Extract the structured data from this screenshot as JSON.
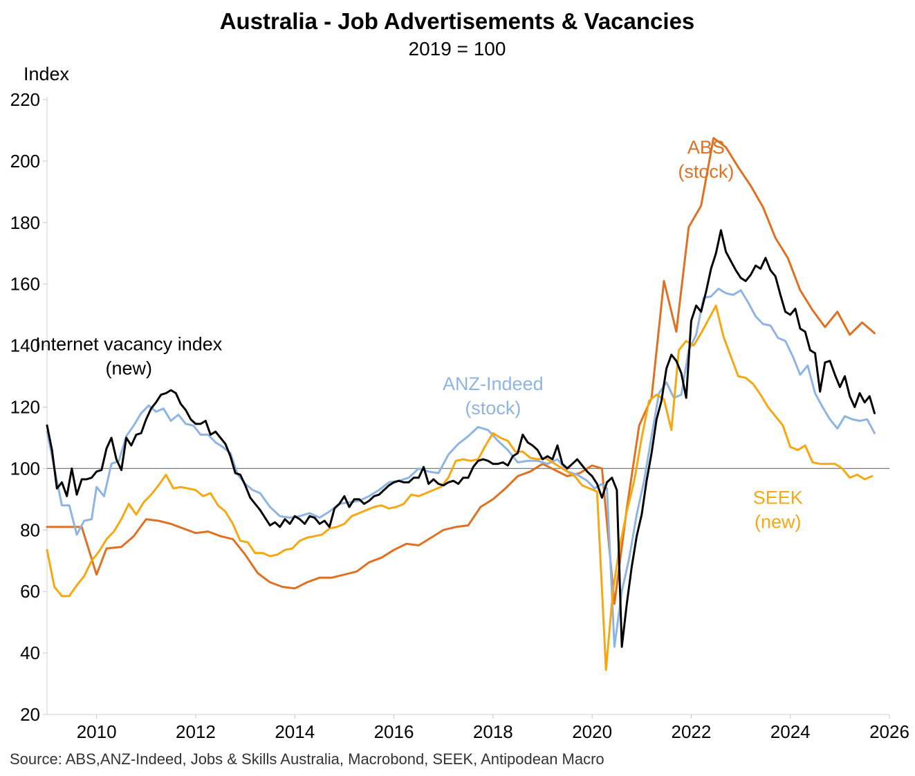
{
  "chart_data": {
    "type": "line",
    "title": "Australia - Job Advertisements & Vacancies",
    "subtitle": "2019 = 100",
    "ylabel": "Index",
    "source": "Source: ABS,ANZ-Indeed, Jobs & Skills Australia, Macrobond, SEEK, Antipodean Macro",
    "xlim": [
      2009.0,
      2026.0
    ],
    "ylim": [
      20,
      220
    ],
    "x_ticks": [
      2010,
      2012,
      2014,
      2016,
      2018,
      2020,
      2022,
      2024,
      2026
    ],
    "y_ticks": [
      20,
      40,
      60,
      80,
      100,
      120,
      140,
      160,
      180,
      200,
      220
    ],
    "reference_line": 100,
    "grid": false,
    "annotations": [
      {
        "lines": [
          "Internet vacancy index",
          "(new)"
        ],
        "series": "ivi",
        "x": 2010.65,
        "y": 138.5
      },
      {
        "lines": [
          "ANZ-Indeed",
          "(stock)"
        ],
        "series": "anz",
        "x": 2018.0,
        "y": 125.5
      },
      {
        "lines": [
          "ABS",
          "(stock)"
        ],
        "series": "abs",
        "x": 2022.3,
        "y": 202.5
      },
      {
        "lines": [
          "SEEK",
          "(new)"
        ],
        "series": "seek",
        "x": 2023.75,
        "y": 88.5
      }
    ],
    "series": [
      {
        "id": "abs",
        "color": "#E07020",
        "x": [
          2009.0,
          2009.7,
          2010.0,
          2010.2,
          2010.5,
          2010.75,
          2011.0,
          2011.25,
          2011.5,
          2011.75,
          2012.0,
          2012.25,
          2012.5,
          2012.75,
          2013.0,
          2013.25,
          2013.5,
          2013.75,
          2014.0,
          2014.25,
          2014.5,
          2014.75,
          2015.0,
          2015.25,
          2015.5,
          2015.75,
          2016.0,
          2016.25,
          2016.5,
          2016.75,
          2017.0,
          2017.25,
          2017.5,
          2017.75,
          2018.0,
          2018.25,
          2018.5,
          2018.75,
          2019.0,
          2019.25,
          2019.5,
          2019.75,
          2020.0,
          2020.2,
          2020.45,
          2020.7,
          2020.95,
          2021.2,
          2021.45,
          2021.7,
          2021.95,
          2022.2,
          2022.45,
          2022.7,
          2022.95,
          2023.2,
          2023.45,
          2023.7,
          2023.95,
          2024.2,
          2024.45,
          2024.7,
          2024.95,
          2025.2,
          2025.45,
          2025.7
        ],
        "y": [
          81,
          81,
          65.5,
          74,
          74.5,
          78,
          83.5,
          83,
          82,
          80.5,
          79,
          79.5,
          78,
          77,
          72,
          66,
          63,
          61.5,
          61,
          63,
          64.5,
          64.5,
          65.5,
          66.5,
          69.5,
          71,
          73.5,
          75.5,
          75,
          77.5,
          80,
          81,
          81.5,
          87.5,
          90,
          93.5,
          97.5,
          99,
          101.5,
          99.5,
          97.5,
          98.5,
          101,
          100,
          56,
          87,
          114,
          123,
          161,
          144.5,
          178.5,
          185.5,
          207.5,
          204.5,
          198,
          192,
          185,
          175,
          168.5,
          158,
          151.5,
          146,
          151,
          143.5,
          147.5,
          144
        ]
      },
      {
        "id": "anz",
        "color": "#8DB4E2",
        "x": [
          2009.0,
          2009.15,
          2009.3,
          2009.45,
          2009.6,
          2009.75,
          2009.9,
          2010.0,
          2010.15,
          2010.3,
          2010.45,
          2010.6,
          2010.75,
          2010.9,
          2011.05,
          2011.2,
          2011.35,
          2011.5,
          2011.65,
          2011.8,
          2011.95,
          2012.1,
          2012.25,
          2012.4,
          2012.55,
          2012.7,
          2012.85,
          2013.0,
          2013.15,
          2013.3,
          2013.5,
          2013.7,
          2013.9,
          2014.1,
          2014.3,
          2014.5,
          2014.7,
          2014.9,
          2015.1,
          2015.3,
          2015.5,
          2015.7,
          2015.9,
          2016.1,
          2016.3,
          2016.5,
          2016.7,
          2016.9,
          2017.1,
          2017.3,
          2017.5,
          2017.7,
          2017.9,
          2018.1,
          2018.3,
          2018.5,
          2018.7,
          2018.9,
          2019.1,
          2019.3,
          2019.5,
          2019.7,
          2019.9,
          2020.05,
          2020.2,
          2020.3,
          2020.45,
          2020.6,
          2020.75,
          2020.9,
          2021.05,
          2021.2,
          2021.35,
          2021.5,
          2021.65,
          2021.8,
          2021.95,
          2022.1,
          2022.25,
          2022.4,
          2022.55,
          2022.7,
          2022.85,
          2023.0,
          2023.15,
          2023.3,
          2023.45,
          2023.6,
          2023.75,
          2023.9,
          2024.05,
          2024.2,
          2024.35,
          2024.5,
          2024.65,
          2024.8,
          2024.95,
          2025.1,
          2025.25,
          2025.4,
          2025.55,
          2025.7
        ],
        "y": [
          112,
          100,
          88,
          88,
          78.5,
          83,
          83.5,
          94,
          91,
          101.5,
          102.5,
          110.5,
          114,
          118,
          120.5,
          118.5,
          119.5,
          115.5,
          117.5,
          114.5,
          114,
          111,
          111,
          108.5,
          107,
          105,
          98,
          95,
          93,
          92,
          87.5,
          84.5,
          84,
          84.5,
          85.5,
          84,
          86,
          88.5,
          89,
          89.5,
          91,
          93,
          95.5,
          96,
          97,
          100,
          99,
          98.5,
          104.5,
          108,
          110.5,
          113.5,
          112.5,
          109,
          106,
          102,
          102.5,
          102.5,
          101.5,
          103,
          99,
          98,
          96,
          93.5,
          95,
          93.5,
          42,
          60,
          71,
          85,
          96,
          110.5,
          124.5,
          128,
          123,
          124,
          138.5,
          143.5,
          155.5,
          156,
          158.5,
          157,
          156.5,
          158,
          154,
          149.5,
          147,
          146.5,
          142.5,
          141.5,
          136.5,
          130.5,
          133.5,
          124.5,
          120,
          116,
          113,
          117,
          116,
          115.5,
          116,
          111.5
        ]
      },
      {
        "id": "seek",
        "color": "#F7A710",
        "x": [
          2009.0,
          2009.15,
          2009.3,
          2009.45,
          2009.6,
          2009.75,
          2009.9,
          2010.05,
          2010.2,
          2010.35,
          2010.5,
          2010.65,
          2010.8,
          2010.95,
          2011.1,
          2011.25,
          2011.4,
          2011.55,
          2011.7,
          2011.85,
          2012.0,
          2012.15,
          2012.3,
          2012.45,
          2012.6,
          2012.75,
          2012.9,
          2013.05,
          2013.2,
          2013.35,
          2013.5,
          2013.65,
          2013.8,
          2013.95,
          2014.1,
          2014.25,
          2014.4,
          2014.55,
          2014.7,
          2014.85,
          2015.0,
          2015.15,
          2015.3,
          2015.45,
          2015.6,
          2015.75,
          2015.9,
          2016.05,
          2016.2,
          2016.35,
          2016.5,
          2016.65,
          2016.8,
          2016.95,
          2017.1,
          2017.25,
          2017.4,
          2017.55,
          2017.7,
          2017.85,
          2018.0,
          2018.15,
          2018.3,
          2018.45,
          2018.6,
          2018.75,
          2018.9,
          2019.05,
          2019.2,
          2019.35,
          2019.5,
          2019.65,
          2019.8,
          2019.95,
          2020.1,
          2020.28,
          2020.42,
          2020.55,
          2020.7,
          2020.85,
          2021.0,
          2021.15,
          2021.3,
          2021.45,
          2021.6,
          2021.75,
          2021.9,
          2022.05,
          2022.2,
          2022.35,
          2022.5,
          2022.65,
          2022.8,
          2022.95,
          2023.1,
          2023.25,
          2023.4,
          2023.55,
          2023.7,
          2023.85,
          2024.0,
          2024.15,
          2024.3,
          2024.45,
          2024.6,
          2024.75,
          2024.9,
          2025.05,
          2025.2,
          2025.35,
          2025.5,
          2025.65
        ],
        "y": [
          73.5,
          61.5,
          58.5,
          58.5,
          62,
          65,
          70,
          73,
          77,
          79.5,
          83.5,
          88.5,
          85,
          89,
          91.5,
          94.5,
          98,
          93.5,
          94,
          93.5,
          93,
          91,
          92,
          88,
          86,
          82,
          76.5,
          76,
          72.5,
          72.5,
          71.5,
          72,
          73.5,
          74,
          76.5,
          77.5,
          78,
          78.5,
          80.5,
          81,
          82,
          84.5,
          85.5,
          86.5,
          87.5,
          88,
          87,
          87.5,
          88.5,
          91.5,
          91,
          92,
          93,
          94,
          97,
          102.5,
          103,
          102.5,
          103,
          107.5,
          111.5,
          110,
          109,
          105.5,
          105.5,
          103.5,
          103,
          103.5,
          102,
          100.5,
          99,
          97.5,
          94.5,
          93.5,
          92.5,
          34.5,
          60,
          74,
          86,
          96,
          110,
          122,
          124,
          122.5,
          112.5,
          138.5,
          141.5,
          140,
          144,
          148.5,
          153,
          143,
          136.5,
          130,
          129.5,
          127.5,
          124,
          120,
          117,
          114,
          107,
          106,
          107.5,
          102,
          101.5,
          101.5,
          101.5,
          100,
          97,
          98,
          96.5,
          97.5
        ]
      },
      {
        "id": "ivi",
        "color": "#000000",
        "x": [
          2009.0,
          2009.1,
          2009.2,
          2009.3,
          2009.4,
          2009.5,
          2009.6,
          2009.7,
          2009.8,
          2009.9,
          2010.0,
          2010.1,
          2010.2,
          2010.3,
          2010.4,
          2010.5,
          2010.6,
          2010.7,
          2010.8,
          2010.9,
          2011.0,
          2011.1,
          2011.2,
          2011.3,
          2011.4,
          2011.5,
          2011.6,
          2011.7,
          2011.8,
          2011.9,
          2012.0,
          2012.1,
          2012.2,
          2012.3,
          2012.4,
          2012.5,
          2012.6,
          2012.7,
          2012.8,
          2012.9,
          2013.0,
          2013.1,
          2013.2,
          2013.3,
          2013.4,
          2013.5,
          2013.6,
          2013.7,
          2013.8,
          2013.9,
          2014.0,
          2014.1,
          2014.2,
          2014.3,
          2014.4,
          2014.5,
          2014.6,
          2014.7,
          2014.8,
          2014.9,
          2015.0,
          2015.1,
          2015.2,
          2015.3,
          2015.4,
          2015.5,
          2015.6,
          2015.7,
          2015.8,
          2015.9,
          2016.0,
          2016.1,
          2016.2,
          2016.3,
          2016.4,
          2016.5,
          2016.6,
          2016.7,
          2016.8,
          2016.9,
          2017.0,
          2017.1,
          2017.2,
          2017.3,
          2017.4,
          2017.5,
          2017.6,
          2017.7,
          2017.8,
          2017.9,
          2018.0,
          2018.1,
          2018.2,
          2018.3,
          2018.4,
          2018.5,
          2018.6,
          2018.7,
          2018.8,
          2018.9,
          2019.0,
          2019.1,
          2019.2,
          2019.3,
          2019.4,
          2019.5,
          2019.6,
          2019.7,
          2019.8,
          2019.9,
          2020.0,
          2020.1,
          2020.2,
          2020.3,
          2020.4,
          2020.5,
          2020.6,
          2020.7,
          2020.8,
          2020.9,
          2021.0,
          2021.1,
          2021.2,
          2021.3,
          2021.4,
          2021.5,
          2021.6,
          2021.7,
          2021.8,
          2021.9,
          2022.0,
          2022.1,
          2022.2,
          2022.3,
          2022.4,
          2022.5,
          2022.6,
          2022.7,
          2022.8,
          2022.9,
          2023.0,
          2023.1,
          2023.2,
          2023.3,
          2023.4,
          2023.5,
          2023.6,
          2023.7,
          2023.8,
          2023.9,
          2024.0,
          2024.1,
          2024.2,
          2024.3,
          2024.4,
          2024.5,
          2024.6,
          2024.7,
          2024.8,
          2024.9,
          2025.0,
          2025.1,
          2025.2,
          2025.3,
          2025.4,
          2025.5,
          2025.6,
          2025.7
        ],
        "y": [
          114,
          106,
          93.5,
          95.5,
          91,
          100,
          91.5,
          96.5,
          96.5,
          97,
          99,
          99.5,
          106.5,
          110,
          103,
          99.5,
          110,
          107.5,
          111,
          111.5,
          116,
          119.5,
          121.5,
          124,
          124.5,
          125.5,
          124.5,
          121,
          119,
          116,
          114.5,
          114.5,
          115.5,
          111,
          112,
          110,
          108,
          104,
          98.5,
          98,
          94.5,
          90.5,
          88.5,
          86.5,
          84,
          81.5,
          82.5,
          81,
          83.5,
          82,
          84.5,
          83.5,
          82,
          84.5,
          84,
          82,
          83,
          81,
          87,
          88.5,
          91,
          87.5,
          90,
          90,
          88.5,
          89.5,
          91,
          91.5,
          93,
          94.5,
          95.5,
          96,
          95.5,
          95.5,
          97,
          97,
          100.5,
          95,
          96.5,
          95,
          94.5,
          95.5,
          96,
          95,
          97,
          97,
          100.5,
          102.5,
          103,
          102.5,
          101.5,
          101.5,
          102,
          101,
          104,
          105,
          111,
          108.5,
          107.5,
          106,
          103,
          104,
          103,
          107.5,
          101.5,
          100,
          101.5,
          103,
          101,
          99,
          97.5,
          95,
          90.5,
          95.5,
          97,
          93,
          42,
          56,
          68,
          78,
          85,
          96,
          105,
          116,
          122,
          132.5,
          137,
          135,
          131,
          123,
          148,
          153,
          151,
          157.5,
          165,
          170,
          177.5,
          170.5,
          167.5,
          164.5,
          162,
          161,
          163,
          166,
          165,
          168.5,
          164.5,
          162.5,
          156.5,
          151,
          150,
          152,
          145.5,
          144.5,
          138.5,
          137.5,
          125,
          134.5,
          135,
          130.5,
          126.5,
          130,
          123.5,
          120,
          124.5,
          121.5,
          123.5,
          118
        ]
      }
    ]
  }
}
